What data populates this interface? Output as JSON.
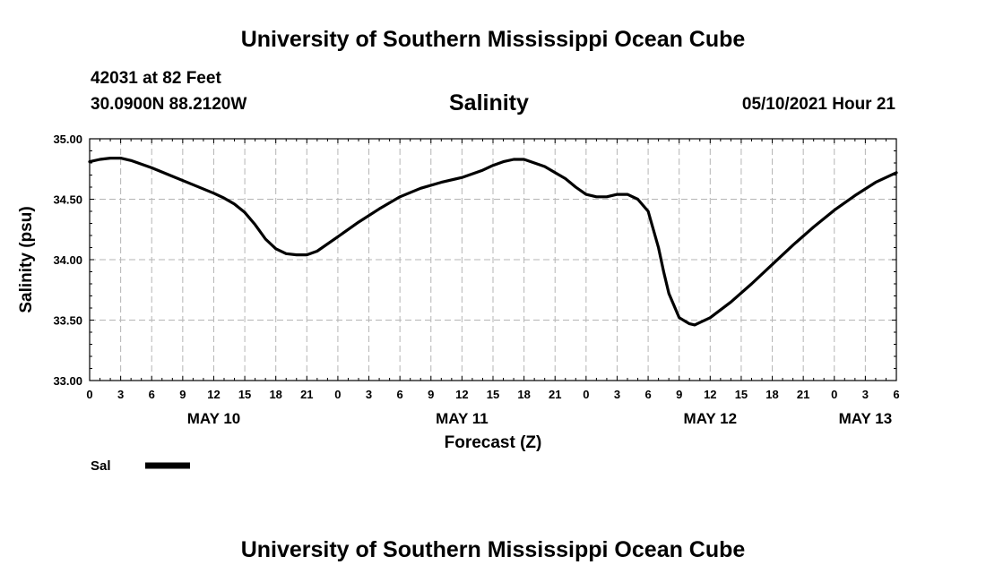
{
  "header": {
    "title": "University of Southern Mississippi Ocean Cube",
    "station": "42031 at 82 Feet",
    "coords": "30.0900N  88.2120W",
    "chart_title": "Salinity",
    "datetime": "05/10/2021 Hour 21"
  },
  "footer": {
    "title": "University of Southern Mississippi Ocean Cube"
  },
  "chart_data": {
    "type": "line",
    "title": "Salinity",
    "xlabel": "Forecast (Z)",
    "ylabel": "Salinity (psu)",
    "xlim": [
      0,
      78
    ],
    "ylim": [
      33.0,
      35.0
    ],
    "yticks": [
      33.0,
      33.5,
      34.0,
      34.5,
      35.0
    ],
    "ytick_labels": [
      "33.00",
      "33.50",
      "34.00",
      "34.50",
      "35.00"
    ],
    "xticks": [
      0,
      3,
      6,
      9,
      12,
      15,
      18,
      21,
      24,
      27,
      30,
      33,
      36,
      39,
      42,
      45,
      48,
      51,
      54,
      57,
      60,
      63,
      66,
      69,
      72,
      75,
      78
    ],
    "xtick_labels": [
      "0",
      "3",
      "6",
      "9",
      "12",
      "15",
      "18",
      "21",
      "0",
      "3",
      "6",
      "9",
      "12",
      "15",
      "18",
      "21",
      "0",
      "3",
      "6",
      "9",
      "12",
      "15",
      "18",
      "21",
      "0",
      "3",
      "6"
    ],
    "day_labels": [
      {
        "label": "MAY 10",
        "x": 12
      },
      {
        "label": "MAY 11",
        "x": 36
      },
      {
        "label": "MAY 12",
        "x": 60
      },
      {
        "label": "MAY 13",
        "x": 75
      }
    ],
    "grid": true,
    "legend": {
      "position": "bottom-left",
      "entries": [
        {
          "name": "Sal",
          "color": "#000000"
        }
      ]
    },
    "series": [
      {
        "name": "Sal",
        "color": "#000000",
        "x": [
          0,
          1,
          2,
          3,
          4,
          6,
          8,
          10,
          12,
          13,
          14,
          15,
          16,
          17,
          18,
          19,
          20,
          21,
          22,
          24,
          26,
          28,
          30,
          32,
          34,
          36,
          38,
          39,
          40,
          41,
          42,
          43,
          44,
          45,
          46,
          47,
          48,
          49,
          50,
          51,
          52,
          53,
          54,
          55,
          55.5,
          56,
          57,
          58,
          58.5,
          59,
          60,
          62,
          64,
          66,
          68,
          70,
          72,
          74,
          76,
          78
        ],
        "y": [
          34.81,
          34.83,
          34.84,
          34.84,
          34.82,
          34.76,
          34.69,
          34.62,
          34.55,
          34.51,
          34.46,
          34.39,
          34.29,
          34.17,
          34.09,
          34.05,
          34.04,
          34.04,
          34.07,
          34.19,
          34.31,
          34.42,
          34.52,
          34.59,
          34.64,
          34.68,
          34.74,
          34.78,
          34.81,
          34.83,
          34.83,
          34.8,
          34.77,
          34.72,
          34.67,
          34.6,
          34.54,
          34.52,
          34.52,
          34.54,
          34.54,
          34.5,
          34.4,
          34.1,
          33.9,
          33.72,
          33.52,
          33.47,
          33.46,
          33.48,
          33.52,
          33.65,
          33.8,
          33.96,
          34.12,
          34.27,
          34.41,
          34.53,
          34.64,
          34.72
        ]
      }
    ]
  }
}
